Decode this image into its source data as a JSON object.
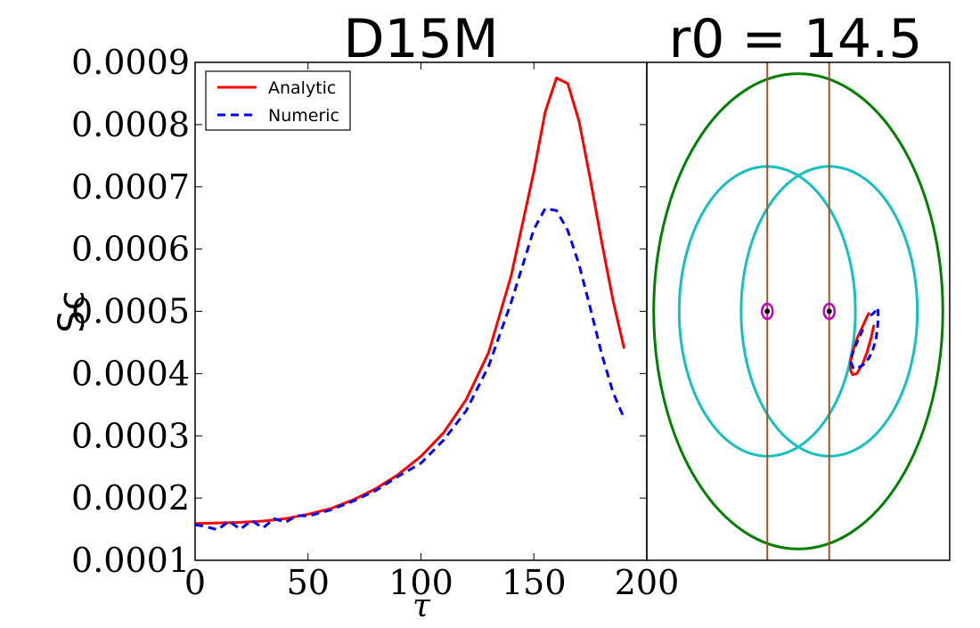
{
  "chart_data": [
    {
      "type": "line",
      "title": "D15M",
      "xlabel": "τ",
      "ylabel": "Sc",
      "xlim": [
        0,
        200
      ],
      "ylim": [
        0.0001,
        0.0009
      ],
      "xticks": [
        0,
        50,
        100,
        150,
        200
      ],
      "xtick_labels": [
        "0",
        "50",
        "100",
        "150",
        "200"
      ],
      "yticks": [
        0.0001,
        0.0002,
        0.0003,
        0.0004,
        0.0005,
        0.0006,
        0.0007,
        0.0008,
        0.0009
      ],
      "ytick_labels": [
        "0.0001",
        "0.0002",
        "0.0003",
        "0.0004",
        "0.0005",
        "0.0006",
        "0.0007",
        "0.0008",
        "0.0009"
      ],
      "legend_position": "top-left",
      "series": [
        {
          "name": "Analytic",
          "color": "#ff0000",
          "style": "solid",
          "x": [
            0,
            10,
            20,
            30,
            40,
            50,
            60,
            70,
            80,
            90,
            100,
            110,
            120,
            130,
            140,
            150,
            155,
            160,
            165,
            170,
            175,
            180,
            185,
            190
          ],
          "y": [
            0.000159,
            0.00016,
            0.000161,
            0.000163,
            0.000167,
            0.000174,
            0.000183,
            0.000197,
            0.000215,
            0.000238,
            0.000267,
            0.000305,
            0.000358,
            0.000434,
            0.000558,
            0.000725,
            0.00082,
            0.000875,
            0.000866,
            0.000805,
            0.000712,
            0.000612,
            0.000518,
            0.00044
          ]
        },
        {
          "name": "Numeric",
          "color": "#0000ff",
          "style": "dashed",
          "x": [
            0,
            5,
            10,
            15,
            20,
            25,
            30,
            35,
            40,
            45,
            50,
            60,
            70,
            80,
            90,
            100,
            110,
            120,
            130,
            140,
            150,
            155,
            160,
            165,
            170,
            175,
            180,
            185,
            190
          ],
          "y": [
            0.000157,
            0.000154,
            0.000149,
            0.000163,
            0.00015,
            0.000164,
            0.000152,
            0.000167,
            0.000161,
            0.000172,
            0.000171,
            0.000181,
            0.000195,
            0.000212,
            0.000235,
            0.000256,
            0.000293,
            0.00034,
            0.000412,
            0.000515,
            0.000632,
            0.000665,
            0.000662,
            0.00063,
            0.000575,
            0.000505,
            0.000432,
            0.00037,
            0.000328
          ]
        }
      ]
    },
    {
      "type": "scatter",
      "title": "r0 = 14.5",
      "xlabel": "",
      "ylabel": "",
      "xlim": [
        -22,
        22
      ],
      "ylim": [
        -22,
        22
      ],
      "grid": false,
      "circles": [
        {
          "name": "outer-circle",
          "color": "#008000",
          "cx": 0,
          "cy": 0,
          "r": 21
        },
        {
          "name": "left-cyan-circle",
          "color": "#17c0c0",
          "cx": -4.5,
          "cy": 0,
          "r": 12.8
        },
        {
          "name": "right-cyan-circle",
          "color": "#17c0c0",
          "cx": 4.5,
          "cy": 0,
          "r": 12.8
        }
      ],
      "vertical_lines": [
        {
          "name": "left-vertical-line",
          "color": "#a0522d",
          "x": -4.5
        },
        {
          "name": "right-vertical-line",
          "color": "#a0522d",
          "x": 4.5
        }
      ],
      "markers": [
        {
          "name": "left-marker",
          "x": -4.5,
          "y": 0
        },
        {
          "name": "right-marker",
          "x": 4.5,
          "y": 0
        }
      ],
      "orbit_series": [
        {
          "name": "Analytic",
          "color": "#ff0000",
          "style": "solid",
          "x": [
            10.3,
            9.9,
            9.3,
            8.6,
            8.0,
            7.6,
            7.6,
            7.9,
            8.5,
            9.3,
            10.0,
            10.6,
            11.0
          ],
          "y": [
            -0.1,
            -0.6,
            -1.4,
            -2.3,
            -3.4,
            -4.4,
            -5.2,
            -5.6,
            -5.5,
            -4.7,
            -3.6,
            -2.3,
            -1.2
          ]
        },
        {
          "name": "Numeric",
          "color": "#0000ff",
          "style": "dashed",
          "x": [
            9.4,
            8.8,
            8.2,
            7.8,
            7.7,
            8.0,
            8.7,
            9.5,
            10.3,
            10.9,
            11.3,
            11.5,
            11.6,
            11.6,
            11.5,
            11.3,
            10.9,
            10.4,
            9.9
          ],
          "y": [
            -1.6,
            -2.4,
            -3.2,
            -3.9,
            -4.6,
            -5.0,
            -5.0,
            -4.7,
            -4.1,
            -3.3,
            -2.4,
            -1.5,
            -0.7,
            0.0,
            0.3,
            0.1,
            -0.2,
            -0.4,
            -0.6
          ]
        }
      ]
    }
  ]
}
